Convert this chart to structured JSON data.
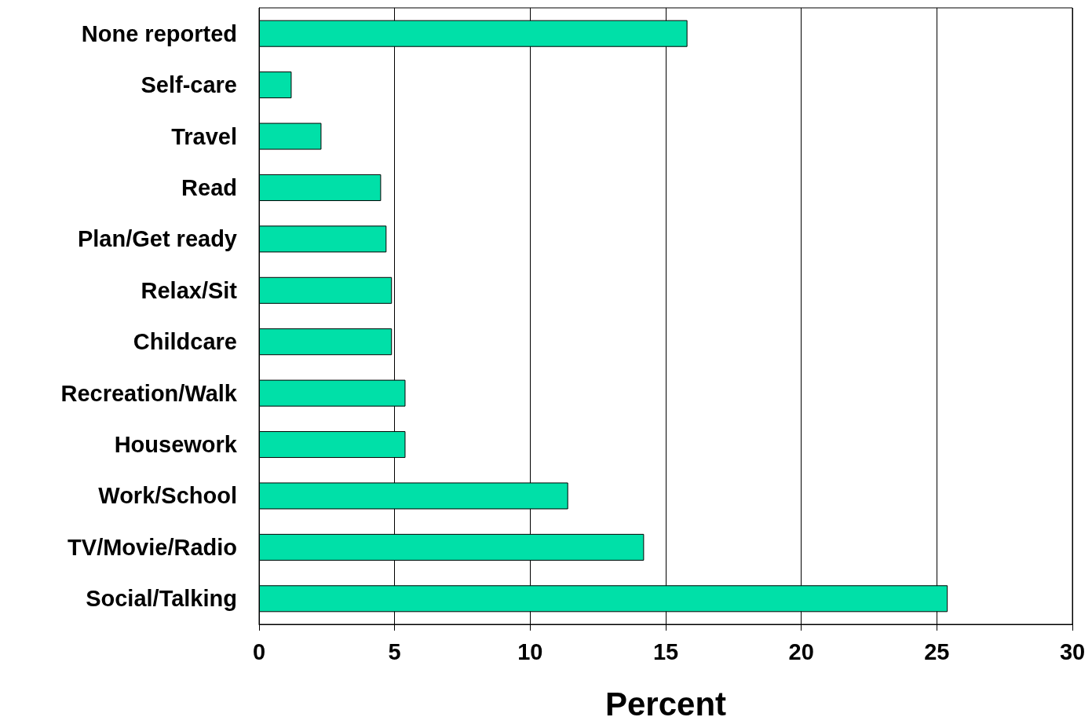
{
  "chart_data": {
    "type": "bar",
    "orientation": "horizontal",
    "xlabel": "Percent",
    "categories": [
      "None reported",
      "Self-care",
      "Travel",
      "Read",
      "Plan/Get ready",
      "Relax/Sit",
      "Childcare",
      "Recreation/Walk",
      "Housework",
      "Work/School",
      "TV/Movie/Radio",
      "Social/Talking"
    ],
    "values": [
      15.8,
      1.2,
      2.3,
      4.5,
      4.7,
      4.9,
      4.9,
      5.4,
      5.4,
      11.4,
      14.2,
      25.4
    ],
    "color": "#00e0a8",
    "xlim": [
      0,
      30
    ],
    "xticks": [
      0,
      5,
      10,
      15,
      20,
      25,
      30
    ],
    "grid": "x"
  }
}
